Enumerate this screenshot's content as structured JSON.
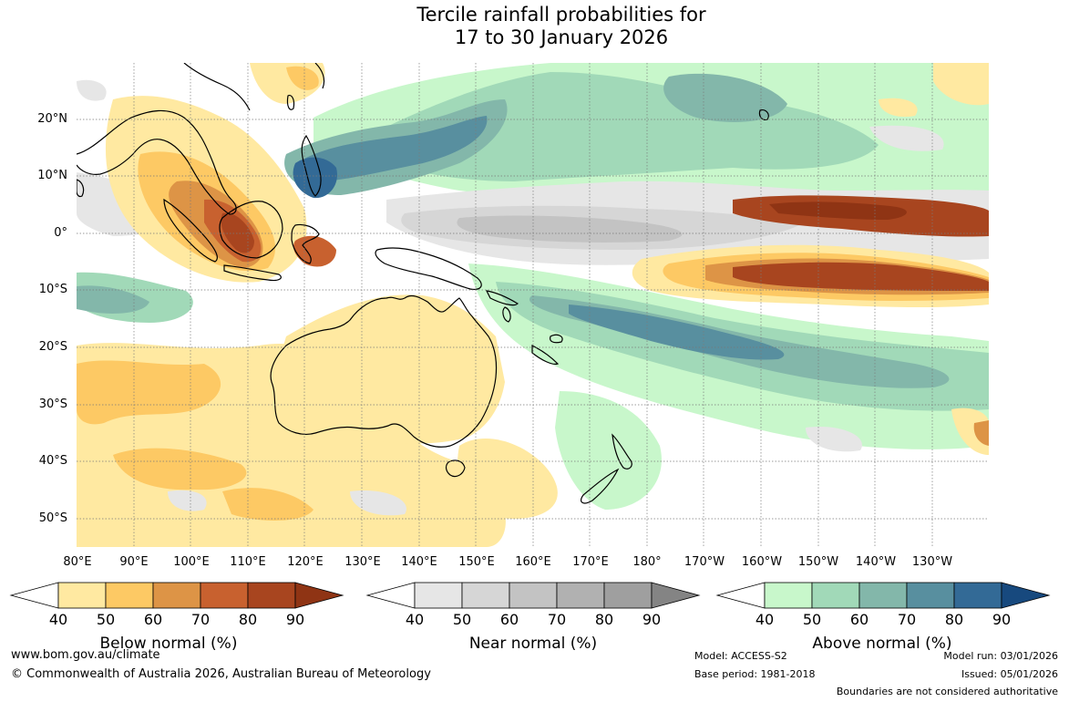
{
  "title": {
    "line1": "Tercile rainfall probabilities for",
    "line2": "17 to 30 January 2026"
  },
  "map": {
    "latitude_labels": [
      "20°N",
      "10°N",
      "0°",
      "10°S",
      "20°S",
      "30°S",
      "40°S",
      "50°S"
    ],
    "longitude_labels": [
      "80°E",
      "90°E",
      "100°E",
      "110°E",
      "120°E",
      "130°E",
      "140°E",
      "150°E",
      "160°E",
      "170°E",
      "180°",
      "170°W",
      "160°W",
      "150°W",
      "140°W",
      "130°W"
    ],
    "gridlines": "dotted"
  },
  "colorbars": [
    {
      "name": "below-normal",
      "label": "Below normal (%)",
      "ticks": [
        "40",
        "50",
        "60",
        "70",
        "80",
        "90"
      ],
      "colors": [
        "#ffffff",
        "#ffe9a1",
        "#fdc964",
        "#dd9446",
        "#c8612f",
        "#a8451f",
        "#8f3414"
      ]
    },
    {
      "name": "near-normal",
      "label": "Near normal (%)",
      "ticks": [
        "40",
        "50",
        "60",
        "70",
        "80",
        "90"
      ],
      "colors": [
        "#ffffff",
        "#e6e6e6",
        "#d6d6d6",
        "#c3c3c3",
        "#b1b1b1",
        "#9f9f9f",
        "#848484"
      ]
    },
    {
      "name": "above-normal",
      "label": "Above normal (%)",
      "ticks": [
        "40",
        "50",
        "60",
        "70",
        "80",
        "90"
      ],
      "colors": [
        "#ffffff",
        "#c8f7cb",
        "#a1d9b8",
        "#83b7aa",
        "#588f9f",
        "#336a96",
        "#17497e"
      ]
    }
  ],
  "footer": {
    "website": "www.bom.gov.au/climate",
    "copyright": "© Commonwealth of Australia 2026, Australian Bureau of Meteorology",
    "model": "Model: ACCESS-S2",
    "base_period": "Base period: 1981-2018",
    "model_run": "Model run: 03/01/2026",
    "issued": "Issued: 05/01/2026",
    "disclaimer": "Boundaries are not considered authoritative"
  }
}
